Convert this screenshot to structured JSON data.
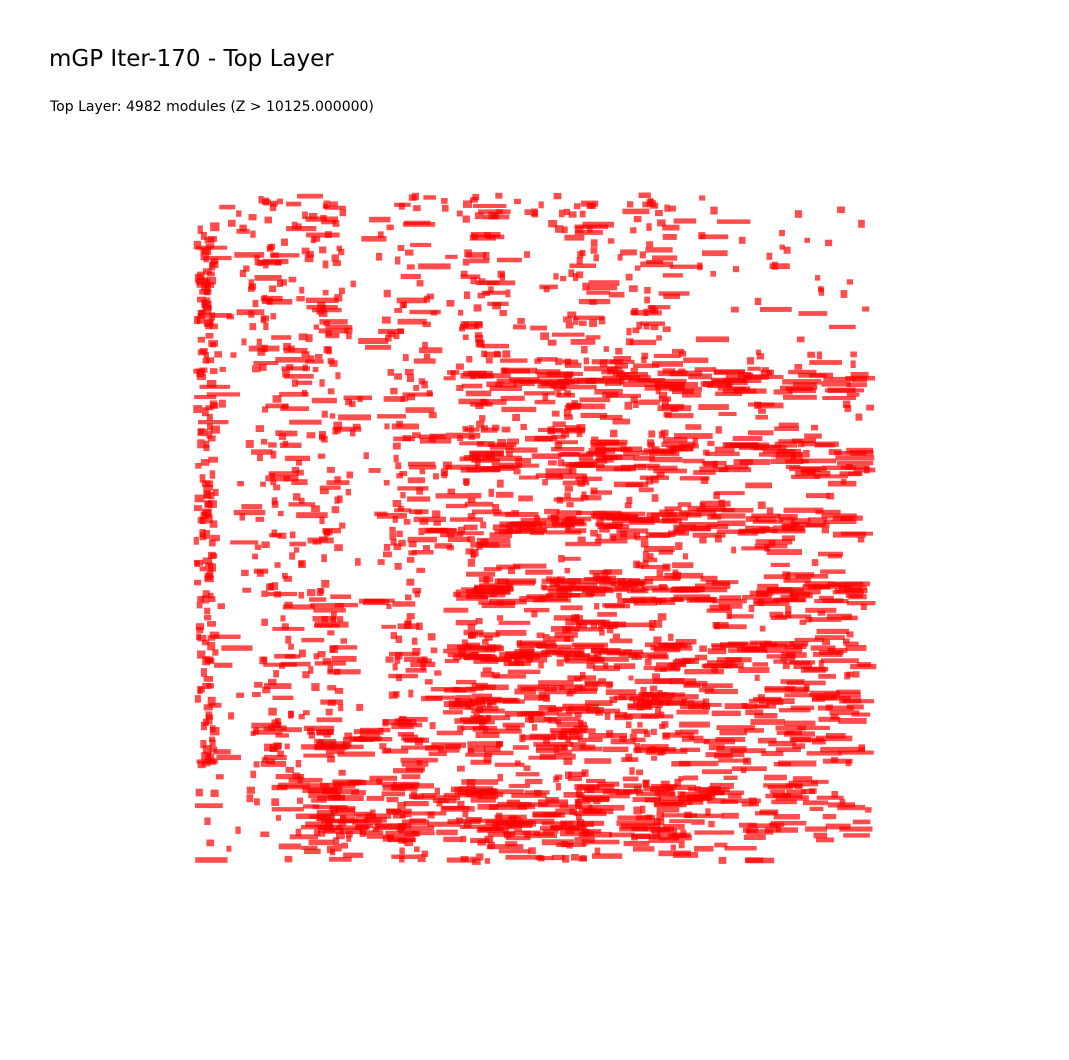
{
  "title": "mGP Iter-170 - Top Layer",
  "subtitle": "Top Layer: 4982 modules (Z > 10125.000000)",
  "colors": {
    "module_fill": "#ff0000",
    "module_opacity": 0.7,
    "background": "#ffffff",
    "text": "#000000"
  },
  "chart_data": {
    "type": "scatter",
    "title": "mGP Iter-170 - Top Layer",
    "subtitle": "Top Layer: 4982 modules (Z > 10125.000000)",
    "module_count": 4982,
    "z_threshold": 10125.0,
    "grid": false,
    "axes_visible": false,
    "legend": "none",
    "layer": "Top",
    "iteration": 170
  }
}
